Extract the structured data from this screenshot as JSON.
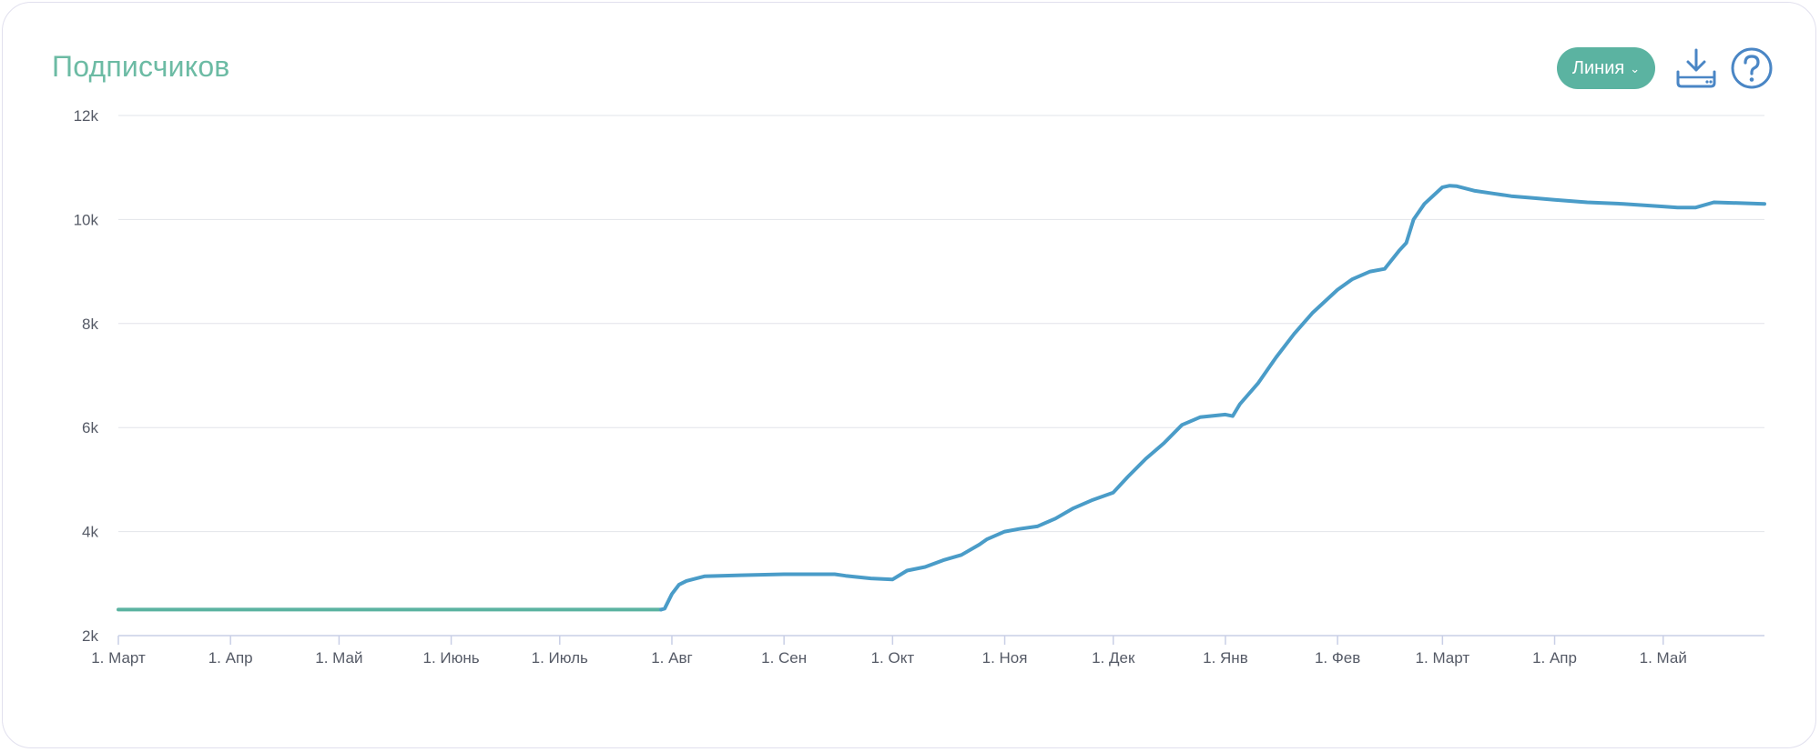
{
  "title": "Подписчиков",
  "controls": {
    "chart_type_label": "Линия",
    "download_icon": "download-icon",
    "help_icon": "help-icon"
  },
  "colors": {
    "title": "#6cbba4",
    "button": "#5bb3a1",
    "line_early": "#5bb3a1",
    "line": "#4a9cc8",
    "grid": "#e2e4ea",
    "icon": "#4a86c5"
  },
  "chart_data": {
    "type": "line",
    "title": "",
    "xlabel": "",
    "ylabel": "",
    "ylim": [
      2000,
      12000
    ],
    "y_ticks": [
      2000,
      4000,
      6000,
      8000,
      10000,
      12000
    ],
    "y_tick_labels": [
      "2k",
      "4k",
      "6k",
      "8k",
      "10k",
      "12k"
    ],
    "x_range": [
      "2023-03-01",
      "2024-05-29"
    ],
    "x_ticks": [
      "2023-03-01",
      "2023-04-01",
      "2023-05-01",
      "2023-06-01",
      "2023-07-01",
      "2023-08-01",
      "2023-09-01",
      "2023-10-01",
      "2023-11-01",
      "2023-12-01",
      "2024-01-01",
      "2024-02-01",
      "2024-03-01",
      "2024-04-01",
      "2024-05-01"
    ],
    "x_tick_labels": [
      "1. Март",
      "1. Апр",
      "1. Май",
      "1. Июнь",
      "1. Июль",
      "1. Авг",
      "1. Сен",
      "1. Окт",
      "1. Ноя",
      "1. Дек",
      "1. Янв",
      "1. Фев",
      "1. Март",
      "1. Апр",
      "1. Май"
    ],
    "grid": true,
    "legend": "none",
    "series": [
      {
        "x": [
          "2023-03-01",
          "2023-07-29",
          "2023-07-30",
          "2023-08-01",
          "2023-08-03",
          "2023-08-05",
          "2023-08-10",
          "2023-08-20",
          "2023-09-01",
          "2023-09-15",
          "2023-09-18",
          "2023-09-25",
          "2023-10-01",
          "2023-10-05",
          "2023-10-10",
          "2023-10-15",
          "2023-10-20",
          "2023-10-25",
          "2023-10-27",
          "2023-11-01",
          "2023-11-05",
          "2023-11-10",
          "2023-11-15",
          "2023-11-20",
          "2023-11-25",
          "2023-12-01",
          "2023-12-05",
          "2023-12-10",
          "2023-12-15",
          "2023-12-20",
          "2023-12-25",
          "2024-01-01",
          "2024-01-03",
          "2024-01-05",
          "2024-01-10",
          "2024-01-15",
          "2024-01-20",
          "2024-01-25",
          "2024-02-01",
          "2024-02-05",
          "2024-02-10",
          "2024-02-14",
          "2024-02-18",
          "2024-02-20",
          "2024-02-22",
          "2024-02-25",
          "2024-03-01",
          "2024-03-03",
          "2024-03-05",
          "2024-03-10",
          "2024-03-15",
          "2024-03-20",
          "2024-03-25",
          "2024-04-01",
          "2024-04-10",
          "2024-04-20",
          "2024-05-01",
          "2024-05-05",
          "2024-05-10",
          "2024-05-15",
          "2024-05-20",
          "2024-05-29"
        ],
        "values": [
          2500,
          2500,
          2520,
          2800,
          2980,
          3050,
          3140,
          3160,
          3180,
          3180,
          3150,
          3100,
          3080,
          3250,
          3320,
          3450,
          3550,
          3750,
          3850,
          4000,
          4050,
          4100,
          4250,
          4450,
          4600,
          4750,
          5050,
          5400,
          5700,
          6050,
          6200,
          6250,
          6220,
          6450,
          6850,
          7350,
          7800,
          8200,
          8650,
          8850,
          9000,
          9050,
          9400,
          9550,
          10000,
          10300,
          10620,
          10650,
          10640,
          10550,
          10500,
          10450,
          10420,
          10380,
          10330,
          10300,
          10250,
          10230,
          10230,
          10330,
          10320,
          10300
        ]
      }
    ]
  }
}
